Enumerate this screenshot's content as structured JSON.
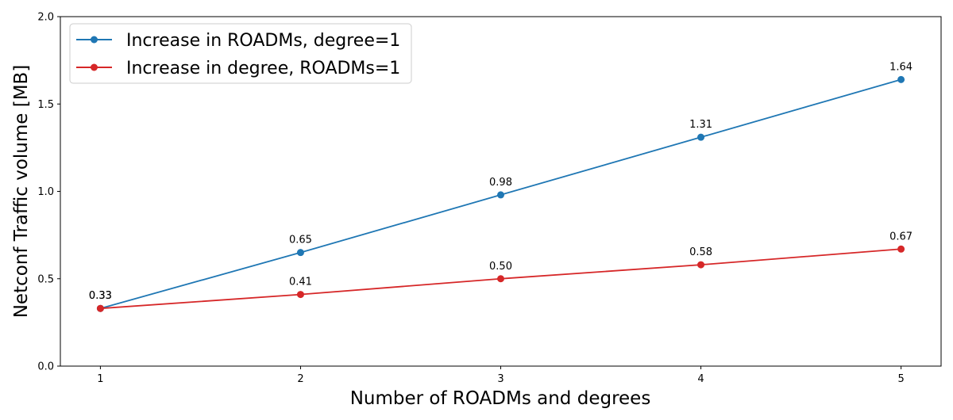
{
  "chart_data": {
    "type": "line",
    "title": "",
    "xlabel": "Number of ROADMs and degrees",
    "ylabel": "Netconf Traffic volume [MB]",
    "x": [
      1,
      2,
      3,
      4,
      5
    ],
    "xticks": [
      "1",
      "2",
      "3",
      "4",
      "5"
    ],
    "xlim": [
      0.8,
      5.2
    ],
    "ylim": [
      0.0,
      2.0
    ],
    "yticks": [
      "0.0",
      "0.5",
      "1.0",
      "1.5",
      "2.0"
    ],
    "grid": false,
    "legend_position": "top-left",
    "series": [
      {
        "name": "Increase in ROADMs, degree=1",
        "color": "#1f77b4",
        "values": [
          0.33,
          0.65,
          0.98,
          1.31,
          1.64
        ],
        "labels": [
          "0.33",
          "0.65",
          "0.98",
          "1.31",
          "1.64"
        ]
      },
      {
        "name": "Increase in degree, ROADMs=1",
        "color": "#d62728",
        "values": [
          0.33,
          0.41,
          0.5,
          0.58,
          0.67
        ],
        "labels": [
          "0.33",
          "0.41",
          "0.50",
          "0.58",
          "0.67"
        ]
      }
    ]
  }
}
